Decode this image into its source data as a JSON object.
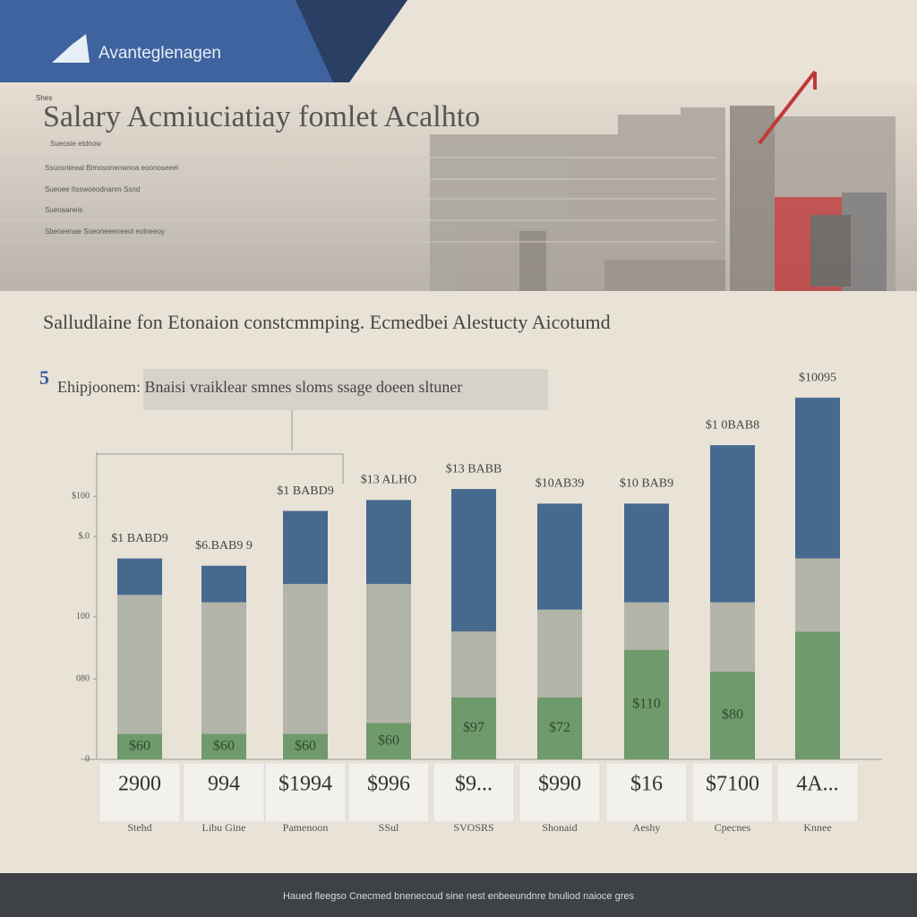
{
  "header": {
    "brand": "Avanteglenagen",
    "small_label": "Shes",
    "title": "Salary Acmiuciatiay fomlet Acalhto",
    "lines": [
      "Sueosie etdnow",
      "Ssuosnteeal Bimosonenwnoa eoonoseeel",
      "Sueoee Itsswoeodnanm Ssnd",
      "Sueoaaneis",
      "Sbeoeenae    Soeoneeeneeol eolneeoy"
    ]
  },
  "chart_data": {
    "type": "bar",
    "stacked": true,
    "subtitle": "Salludlaine fon Etonaion constcmmping. Ecmedbei Alestucty Aicotumd",
    "annotation_number": "5",
    "annotation": "Ehipjoonem: Bnaisi vraiklear smnes sloms ssage doeen sltuner",
    "categories": [
      "Stehd",
      "Libu Gine",
      "Pamenoon",
      "SSul",
      "SVOSRS",
      "Shonaid",
      "Aeshy",
      "Cpecnes",
      "Knnee"
    ],
    "series": [
      {
        "color": "#6f9a6c",
        "values": [
          7,
          7,
          7,
          10,
          17,
          17,
          30,
          24,
          35
        ]
      },
      {
        "color": "#b3b4aa",
        "values": [
          38,
          36,
          41,
          38,
          18,
          24,
          13,
          19,
          20
        ]
      },
      {
        "color": "#466a8e",
        "values": [
          10,
          10,
          20,
          23,
          39,
          29,
          27,
          43,
          44
        ]
      }
    ],
    "top_labels": [
      "$1 BABD9",
      "$6.BAB9 9",
      "$1 BABD9",
      "$13 ALHO",
      "$13 BABB",
      "$10AB39",
      "$10 BAB9",
      "$1 0BAB8",
      "$10095"
    ],
    "segment_labels": [
      "$60",
      "$60",
      "$60",
      "$60",
      "$97",
      "$72",
      "$110",
      "$80",
      null
    ],
    "table_values": [
      "2900",
      "994",
      "$1994",
      "$996",
      "$9...",
      "$990",
      "$16",
      "$7100",
      "4A..."
    ],
    "ylim": [
      0,
      100
    ],
    "yticks": [
      0,
      {
        "value": 22,
        "label": "080"
      },
      {
        "value": 39,
        "label": "100"
      },
      {
        "value": 61,
        "label": "$.0"
      },
      {
        "value": 72,
        "label": "$100"
      }
    ]
  },
  "footer": "Haued fleegso  Cnecmed bnenecoud sine  nest enbeeundnre bnuliod naioce gres"
}
